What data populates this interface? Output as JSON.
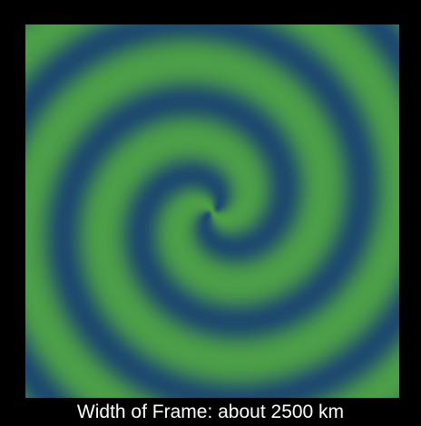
{
  "visualization": {
    "subject": "two-armed spiral pattern",
    "colors": {
      "background": "#000000",
      "band_light": "#4c9e48",
      "band_dark": "#1e4a6e",
      "caption_text": "#ffffff"
    }
  },
  "caption": {
    "text": "Width of Frame: about 2500 km"
  }
}
